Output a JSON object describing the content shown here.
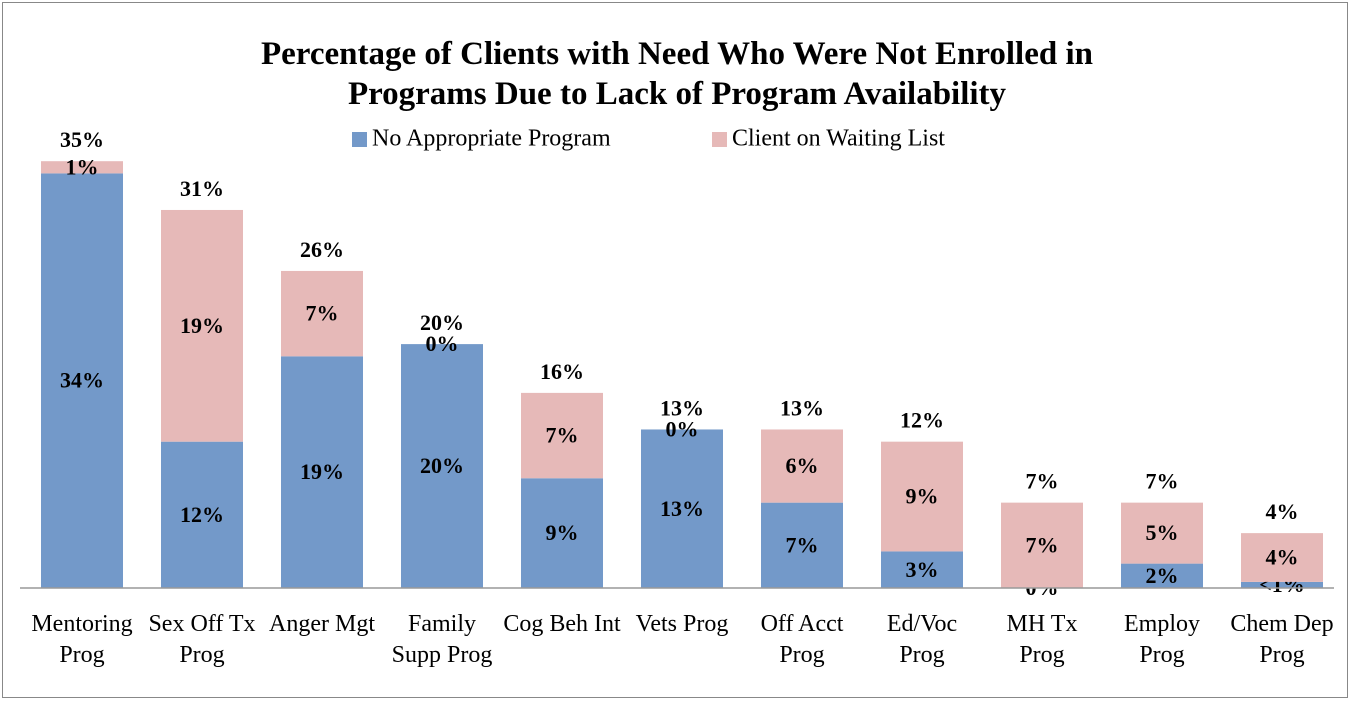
{
  "chart_data": {
    "type": "stacked_bar",
    "title": "Percentage of Clients with Need Who Were Not Enrolled in Programs Due to Lack of Program Availability",
    "categories": [
      "Mentoring Prog",
      "Sex Off Tx Prog",
      "Anger Mgt",
      "Family Supp Prog",
      "Cog Beh Int",
      "Vets Prog",
      "Off Acct Prog",
      "Ed/Voc Prog",
      "MH Tx Prog",
      "Employ Prog",
      "Chem Dep Prog"
    ],
    "series": [
      {
        "name": "No Appropriate Program",
        "color": "#7399c9",
        "values": [
          34,
          12,
          19,
          20,
          9,
          13,
          7,
          3,
          0,
          2,
          0.5
        ],
        "value_labels": [
          "34%",
          "12%",
          "19%",
          "20%",
          "9%",
          "13%",
          "7%",
          "3%",
          "0%",
          "2%",
          "<1%"
        ]
      },
      {
        "name": "Client on Waiting List",
        "color": "#e6b9b8",
        "values": [
          1,
          19,
          7,
          0,
          7,
          0,
          6,
          9,
          7,
          5,
          4
        ],
        "value_labels": [
          "1%",
          "19%",
          "7%",
          "0%",
          "7%",
          "0%",
          "6%",
          "9%",
          "7%",
          "5%",
          "4%"
        ]
      }
    ],
    "totals": [
      35,
      31,
      26,
      20,
      16,
      13,
      13,
      12,
      7,
      7,
      4
    ],
    "total_labels": [
      "35%",
      "31%",
      "26%",
      "20%",
      "16%",
      "13%",
      "13%",
      "12%",
      "7%",
      "7%",
      "4%"
    ],
    "ylim": [
      0,
      36
    ],
    "legend": "top"
  }
}
